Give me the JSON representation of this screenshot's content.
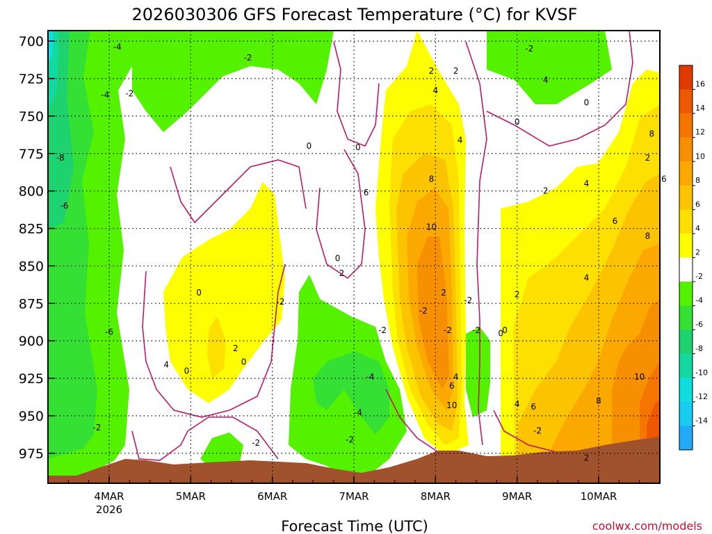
{
  "chart_data": {
    "type": "heatmap",
    "title": "2026030306 GFS Forecast Temperature (°C) for KVSF",
    "xlabel": "Forecast Time (UTC)",
    "ylabel": "",
    "credit": "coolwx.com/models",
    "x_ticks": [
      {
        "label": "4MAR",
        "sub": "2026",
        "day": 1
      },
      {
        "label": "5MAR",
        "sub": "",
        "day": 2
      },
      {
        "label": "6MAR",
        "sub": "",
        "day": 3
      },
      {
        "label": "7MAR",
        "sub": "",
        "day": 4
      },
      {
        "label": "8MAR",
        "sub": "",
        "day": 5
      },
      {
        "label": "9MAR",
        "sub": "",
        "day": 6
      },
      {
        "label": "10MAR",
        "sub": "",
        "day": 7
      }
    ],
    "x_range": [
      0.25,
      7.75
    ],
    "y_ticks": [
      "700",
      "725",
      "750",
      "775",
      "800",
      "825",
      "850",
      "875",
      "900",
      "925",
      "950",
      "975"
    ],
    "y_range_hpa": [
      693,
      995
    ],
    "colorbar": {
      "levels": [
        "16",
        "14",
        "12",
        "10",
        "8",
        "6",
        "4",
        "2",
        "-2",
        "-4",
        "-6",
        "-8",
        "-10",
        "-12",
        "-14"
      ],
      "colors": [
        "#e03a00",
        "#ee5800",
        "#f47600",
        "#f79000",
        "#fba800",
        "#fcc300",
        "#fee000",
        "#fefe00",
        "#ffffff",
        "#55f200",
        "#33e033",
        "#1fd270",
        "#14d8a0",
        "#10dede",
        "#18ccf2",
        "#22aaf8"
      ]
    },
    "contour_labels": [
      "-4",
      "-4",
      "-2",
      "-2",
      "-8",
      "-6",
      "-6",
      "-2",
      "-4",
      "-4",
      "-2",
      "-2",
      "-2",
      "-2",
      "0",
      "0",
      "0",
      "0",
      "0",
      "0",
      "0",
      "0",
      "2",
      "2",
      "4",
      "2",
      "4",
      "2",
      "2",
      "6",
      "8",
      "10",
      "10",
      "6",
      "4",
      "4",
      "-2",
      "-2",
      "-2",
      "0",
      "-2",
      "2",
      "2",
      "4",
      "2",
      "4",
      "6",
      "8",
      "6",
      "4",
      "10",
      "8",
      "2",
      "4",
      "6",
      "8",
      "-2",
      "-2",
      "0"
    ]
  }
}
